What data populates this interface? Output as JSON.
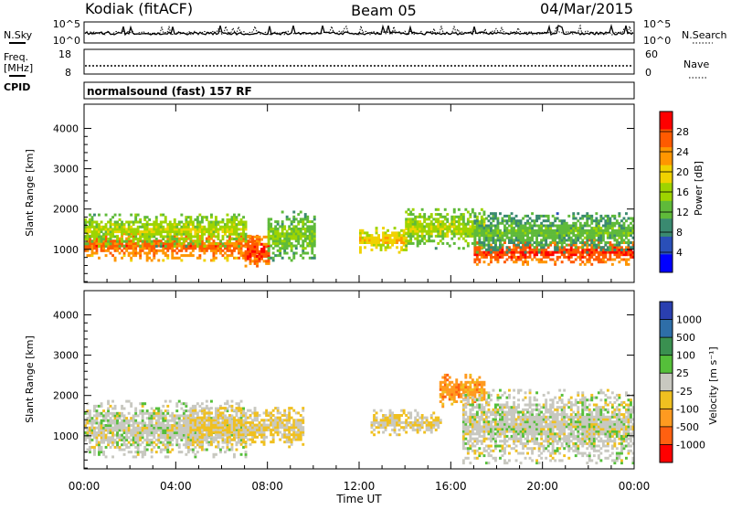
{
  "header": {
    "station": "Kodiak (fitACF)",
    "beam": "Beam 05",
    "date": "04/Mar/2015"
  },
  "noise_panel": {
    "left_label": "N.Sky",
    "right_label": "N.Search",
    "ticks_left": [
      "10^5",
      "10^0"
    ],
    "ticks_right": [
      "10^5",
      "10^0"
    ]
  },
  "freq_panel": {
    "left_label_1": "Freq.",
    "left_label_2": "[MHz]",
    "right_label": "Nave",
    "ticks_left": [
      "18",
      "8"
    ],
    "ticks_right": [
      "60",
      "0"
    ]
  },
  "cpid_panel": {
    "label": "CPID",
    "text": "normalsound (fast) 157 RF"
  },
  "power_panel": {
    "ylabel": "Slant Range [km]",
    "yticks": [
      "4000",
      "3000",
      "2000",
      "1000"
    ],
    "colorbar_label": "Power [dB]",
    "colorbar_ticks": [
      "28",
      "24",
      "20",
      "16",
      "12",
      "8",
      "4"
    ],
    "colorbar_colors": [
      "#ff0000",
      "#ff5a00",
      "#ff9600",
      "#f0d200",
      "#9ed400",
      "#5fba3a",
      "#3a8a70",
      "#2a4fb8",
      "#0000ff"
    ]
  },
  "velocity_panel": {
    "ylabel": "Slant Range [km]",
    "yticks": [
      "4000",
      "3000",
      "2000",
      "1000"
    ],
    "colorbar_label": "Velocity [m s⁻¹]",
    "colorbar_ticks": [
      "1000",
      "500",
      "100",
      "25",
      "-25",
      "-100",
      "-500",
      "-1000"
    ],
    "colorbar_colors": [
      "#2a3fb0",
      "#2e6ea8",
      "#3a9050",
      "#55bf3a",
      "#c8c8c0",
      "#f0c020",
      "#ff9a20",
      "#ff6010",
      "#ff0000"
    ]
  },
  "xaxis": {
    "ticks": [
      "00:00",
      "04:00",
      "08:00",
      "12:00",
      "16:00",
      "20:00",
      "00:00"
    ],
    "label": "Time UT"
  },
  "chart_data": {
    "type": "heatmap",
    "x_unit": "hours UT",
    "xlim": [
      0,
      24
    ],
    "ylim_km": [
      180,
      4600
    ],
    "power_db": {
      "range": [
        0,
        30
      ],
      "bands": [
        {
          "t": [
            0.0,
            7.5
          ],
          "center_km": 1050,
          "width_km": 350,
          "db": 26
        },
        {
          "t": [
            0.0,
            7.0
          ],
          "center_km": 1450,
          "width_km": 400,
          "db": 16
        },
        {
          "t": [
            7.0,
            8.0
          ],
          "center_km": 900,
          "width_km": 400,
          "db": 28
        },
        {
          "t": [
            8.0,
            10.0
          ],
          "center_km": 1300,
          "width_km": 600,
          "db": 14
        },
        {
          "t": [
            12.0,
            14.0
          ],
          "center_km": 1200,
          "width_km": 300,
          "db": 20
        },
        {
          "t": [
            14.0,
            17.5
          ],
          "center_km": 1500,
          "width_km": 500,
          "db": 16
        },
        {
          "t": [
            17.0,
            24.0
          ],
          "center_km": 900,
          "width_km": 300,
          "db": 28
        },
        {
          "t": [
            17.0,
            24.0
          ],
          "center_km": 1400,
          "width_km": 500,
          "db": 12
        }
      ]
    },
    "velocity_ms": {
      "range": [
        -1000,
        1000
      ],
      "bands": [
        {
          "t": [
            0.0,
            7.0
          ],
          "center_km": 1150,
          "width_km": 700,
          "v": 0
        },
        {
          "t": [
            4.5,
            9.5
          ],
          "center_km": 1200,
          "width_km": 500,
          "v": -150
        },
        {
          "t": [
            12.5,
            15.5
          ],
          "center_km": 1300,
          "width_km": 300,
          "v": -100
        },
        {
          "t": [
            15.5,
            17.5
          ],
          "center_km": 2100,
          "width_km": 400,
          "v": -500
        },
        {
          "t": [
            16.5,
            24.0
          ],
          "center_km": 1200,
          "width_km": 900,
          "v": 0
        }
      ]
    }
  }
}
